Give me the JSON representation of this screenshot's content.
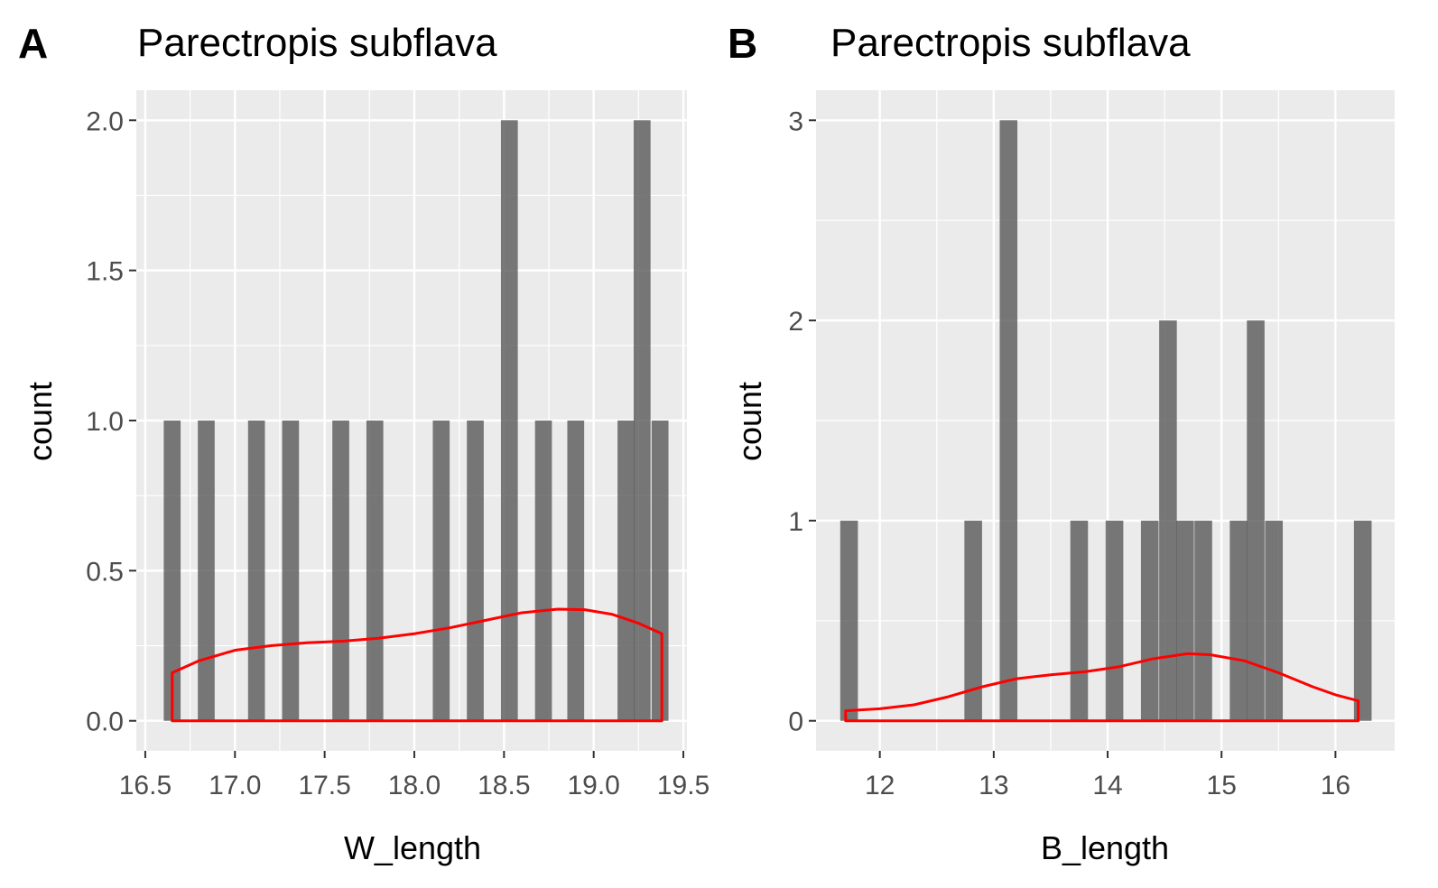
{
  "chart_data": [
    {
      "type": "bar",
      "tag": "A",
      "title": "Parectropis subflava",
      "xlabel": "W_length",
      "ylabel": "count",
      "xlim": [
        16.45,
        19.52
      ],
      "ylim": [
        -0.1,
        2.1
      ],
      "bin_width": 0.094,
      "xticks": [
        16.5,
        17.0,
        17.5,
        18.0,
        18.5,
        19.0,
        19.5
      ],
      "xtick_labels": [
        "16.5",
        "17.0",
        "17.5",
        "18.0",
        "18.5",
        "19.0",
        "19.5"
      ],
      "yticks": [
        0,
        0.5,
        1,
        1.5,
        2
      ],
      "ytick_labels": [
        "0.0",
        "0.5",
        "1.0",
        "1.5",
        "2.0"
      ],
      "bars": [
        {
          "x": 16.65,
          "count": 1
        },
        {
          "x": 16.84,
          "count": 1
        },
        {
          "x": 17.12,
          "count": 1
        },
        {
          "x": 17.31,
          "count": 1
        },
        {
          "x": 17.59,
          "count": 1
        },
        {
          "x": 17.78,
          "count": 1
        },
        {
          "x": 18.15,
          "count": 1
        },
        {
          "x": 18.34,
          "count": 1
        },
        {
          "x": 18.53,
          "count": 2
        },
        {
          "x": 18.72,
          "count": 1
        },
        {
          "x": 18.9,
          "count": 1
        },
        {
          "x": 19.18,
          "count": 1
        },
        {
          "x": 19.27,
          "count": 2
        },
        {
          "x": 19.37,
          "count": 1
        }
      ],
      "density": {
        "color": "#ff0000",
        "points": [
          [
            16.65,
            0.16
          ],
          [
            16.8,
            0.2
          ],
          [
            17.0,
            0.235
          ],
          [
            17.2,
            0.25
          ],
          [
            17.4,
            0.26
          ],
          [
            17.6,
            0.265
          ],
          [
            17.8,
            0.275
          ],
          [
            18.0,
            0.29
          ],
          [
            18.2,
            0.31
          ],
          [
            18.4,
            0.335
          ],
          [
            18.6,
            0.36
          ],
          [
            18.8,
            0.372
          ],
          [
            18.95,
            0.37
          ],
          [
            19.1,
            0.355
          ],
          [
            19.25,
            0.325
          ],
          [
            19.38,
            0.29
          ]
        ]
      }
    },
    {
      "type": "bar",
      "tag": "B",
      "title": "Parectropis subflava",
      "xlabel": "B_length",
      "ylabel": "count",
      "xlim": [
        11.44,
        16.52
      ],
      "ylim": [
        -0.15,
        3.15
      ],
      "bin_width": 0.155,
      "xticks": [
        12,
        13,
        14,
        15,
        16
      ],
      "xtick_labels": [
        "12",
        "13",
        "14",
        "15",
        "16"
      ],
      "yticks": [
        0,
        1,
        2,
        3
      ],
      "ytick_labels": [
        "0",
        "1",
        "2",
        "3"
      ],
      "bars": [
        {
          "x": 11.73,
          "count": 1
        },
        {
          "x": 12.82,
          "count": 1
        },
        {
          "x": 13.13,
          "count": 3
        },
        {
          "x": 13.75,
          "count": 1
        },
        {
          "x": 14.06,
          "count": 1
        },
        {
          "x": 14.37,
          "count": 1
        },
        {
          "x": 14.53,
          "count": 2
        },
        {
          "x": 14.68,
          "count": 1
        },
        {
          "x": 14.84,
          "count": 1
        },
        {
          "x": 15.15,
          "count": 1
        },
        {
          "x": 15.3,
          "count": 2
        },
        {
          "x": 15.46,
          "count": 1
        },
        {
          "x": 16.24,
          "count": 1
        }
      ],
      "density": {
        "color": "#ff0000",
        "points": [
          [
            11.7,
            0.05
          ],
          [
            12.0,
            0.06
          ],
          [
            12.3,
            0.08
          ],
          [
            12.6,
            0.12
          ],
          [
            12.9,
            0.17
          ],
          [
            13.2,
            0.21
          ],
          [
            13.5,
            0.23
          ],
          [
            13.8,
            0.245
          ],
          [
            14.1,
            0.27
          ],
          [
            14.4,
            0.31
          ],
          [
            14.7,
            0.335
          ],
          [
            14.9,
            0.33
          ],
          [
            15.2,
            0.3
          ],
          [
            15.5,
            0.24
          ],
          [
            15.8,
            0.17
          ],
          [
            16.0,
            0.13
          ],
          [
            16.2,
            0.1
          ]
        ]
      }
    }
  ]
}
